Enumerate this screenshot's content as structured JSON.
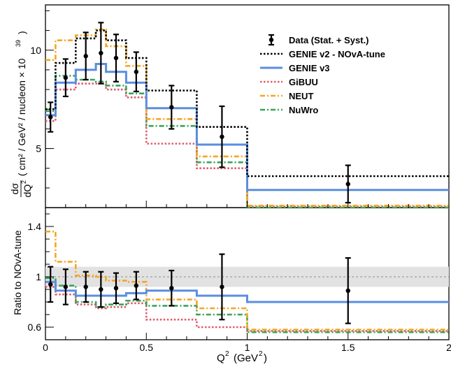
{
  "chart_data": [
    {
      "type": "line",
      "panel": "top",
      "ylabel_fraction_num": "dσ",
      "ylabel_fraction_den": "dQ",
      "ylabel_den_sup": "2",
      "ylabel_rest": "( cm² / GeV² / nucleon × 10",
      "ylabel_exp": "39",
      "ylabel_close": ")",
      "ylim": [
        2.0,
        12.3
      ],
      "yticks": [
        5,
        10
      ],
      "xlim": [
        0,
        2
      ],
      "bin_edges": [
        0,
        0.05,
        0.15,
        0.25,
        0.3,
        0.4,
        0.5,
        0.75,
        1.0,
        2.0
      ],
      "data": {
        "name": "Data (Stat. + Syst.)",
        "x": [
          0.025,
          0.1,
          0.2,
          0.275,
          0.35,
          0.45,
          0.625,
          0.875,
          1.5
        ],
        "y": [
          6.6,
          8.6,
          9.7,
          9.85,
          9.6,
          8.9,
          7.1,
          5.6,
          3.2
        ],
        "err": [
          0.75,
          0.95,
          1.2,
          1.55,
          1.2,
          1.0,
          1.1,
          1.55,
          0.95
        ]
      },
      "series": [
        {
          "name": "GENIE v2 - NOvA-tune",
          "color": "#000000",
          "style": "dotted",
          "values": [
            7.0,
            9.35,
            10.6,
            11.0,
            10.5,
            9.6,
            7.95,
            6.1,
            3.6
          ]
        },
        {
          "name": "GENIE v3",
          "color": "#5a8ee0",
          "style": "solid",
          "values": [
            6.7,
            8.35,
            9.0,
            9.3,
            8.9,
            8.35,
            7.05,
            5.2,
            2.9
          ]
        },
        {
          "name": "GiBUU",
          "color": "#e15a6a",
          "style": "dotted",
          "values": [
            6.4,
            8.0,
            8.3,
            8.3,
            8.0,
            7.6,
            5.25,
            4.0,
            2.05
          ]
        },
        {
          "name": "NEUT",
          "color": "#f5a623",
          "style": "dashdot",
          "values": [
            9.5,
            10.5,
            10.75,
            11.05,
            10.2,
            9.2,
            6.5,
            4.6,
            2.1
          ]
        },
        {
          "name": "NuWro",
          "color": "#3aa35a",
          "style": "dashdot",
          "values": [
            6.9,
            8.7,
            8.5,
            8.4,
            8.2,
            7.8,
            6.15,
            4.3,
            2.0
          ]
        }
      ]
    },
    {
      "type": "line",
      "panel": "bottom",
      "ylabel": "Ratio to NOvA-tune",
      "xlabel_main": "Q",
      "xlabel_sup": "2",
      "xlabel_unit": "(GeV",
      "xlabel_unit_sup": "2",
      "xlabel_close": ")",
      "ylim": [
        0.5,
        1.55
      ],
      "yticks": [
        0.6,
        1,
        1.4
      ],
      "ytick_labels": [
        "0.6",
        "1",
        "1.4"
      ],
      "xticks": [
        0,
        0.5,
        1,
        1.5,
        2
      ],
      "xtick_labels": [
        "0",
        "0.5",
        "1",
        "1.5",
        "2"
      ],
      "reference_line": 1.0,
      "band": [
        0.92,
        1.08
      ],
      "bin_edges": [
        0,
        0.05,
        0.15,
        0.25,
        0.3,
        0.4,
        0.5,
        0.75,
        1.0,
        2.0
      ],
      "data": {
        "x": [
          0.025,
          0.1,
          0.2,
          0.275,
          0.35,
          0.45,
          0.625,
          0.875,
          1.5
        ],
        "y": [
          0.94,
          0.92,
          0.92,
          0.9,
          0.91,
          0.93,
          0.91,
          0.92,
          0.89
        ],
        "err": [
          0.14,
          0.14,
          0.12,
          0.14,
          0.12,
          0.11,
          0.14,
          0.26,
          0.26
        ]
      },
      "series": [
        {
          "name": "GENIE v3",
          "values": [
            0.96,
            0.89,
            0.85,
            0.85,
            0.85,
            0.87,
            0.89,
            0.85,
            0.8
          ]
        },
        {
          "name": "GiBUU",
          "values": [
            0.92,
            0.86,
            0.78,
            0.75,
            0.76,
            0.79,
            0.66,
            0.6,
            0.57
          ]
        },
        {
          "name": "NEUT",
          "values": [
            1.36,
            1.12,
            1.01,
            1.0,
            0.97,
            0.96,
            0.82,
            0.75,
            0.58
          ]
        },
        {
          "name": "NuWro",
          "values": [
            0.99,
            0.93,
            0.8,
            0.76,
            0.78,
            0.81,
            0.77,
            0.7,
            0.56
          ]
        }
      ]
    }
  ]
}
